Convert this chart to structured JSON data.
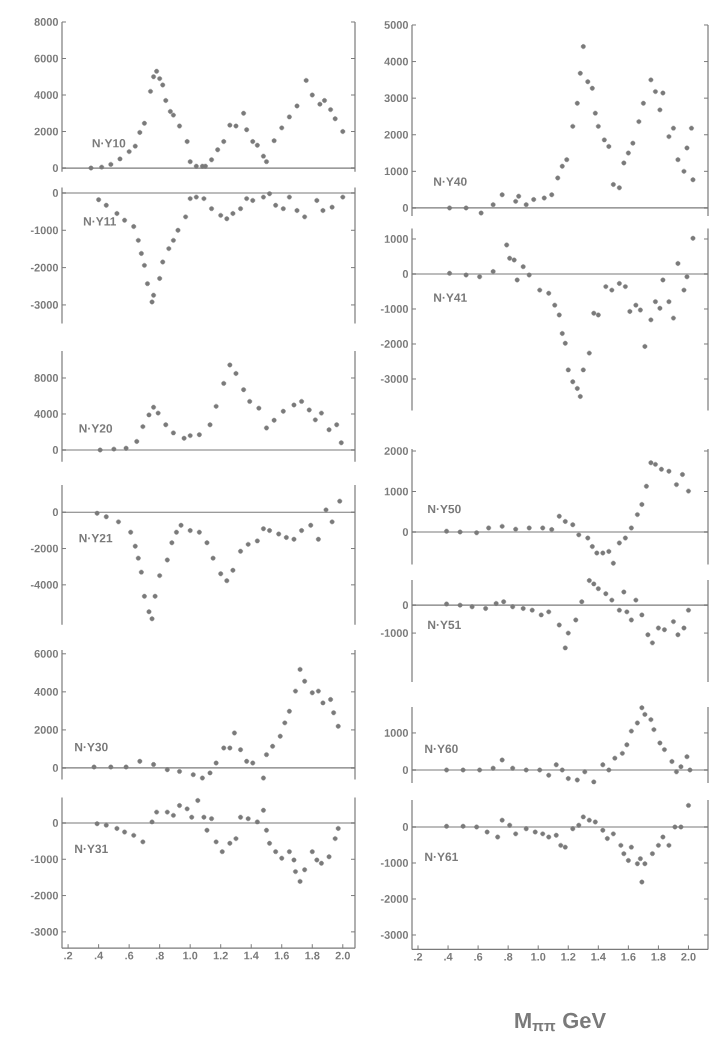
{
  "chart_data": [
    {
      "type": "scatter",
      "annotations": [
        "N·Y10"
      ],
      "color": "#7a7a7a",
      "marker": "circle",
      "xlim": [
        0.16,
        2.08
      ],
      "ylim": [
        -200,
        8000
      ],
      "yticks": [
        0,
        2000,
        4000,
        6000,
        8000
      ],
      "tick_labels": "y",
      "ref_lines": [
        {
          "axis": "y",
          "value": 0
        }
      ],
      "x": [
        0.35,
        0.42,
        0.48,
        0.54,
        0.6,
        0.64,
        0.67,
        0.7,
        0.74,
        0.76,
        0.78,
        0.8,
        0.82,
        0.84,
        0.87,
        0.89,
        0.93,
        0.98,
        1.0,
        1.04,
        1.08,
        1.1,
        1.14,
        1.18,
        1.22,
        1.26,
        1.3,
        1.35,
        1.37,
        1.41,
        1.44,
        1.48,
        1.5,
        1.55,
        1.6,
        1.65,
        1.7,
        1.76,
        1.8,
        1.85,
        1.88,
        1.92,
        1.95,
        2.0
      ],
      "values": [
        0,
        50,
        200,
        500,
        900,
        1200,
        1950,
        2450,
        4200,
        5000,
        5300,
        4900,
        4550,
        3700,
        3100,
        2900,
        2300,
        1450,
        350,
        100,
        100,
        100,
        450,
        1000,
        1450,
        2350,
        2300,
        3000,
        2100,
        1450,
        1250,
        650,
        350,
        1500,
        2200,
        2800,
        3400,
        4800,
        4000,
        3500,
        3700,
        3200,
        2700,
        2000
      ]
    },
    {
      "type": "scatter",
      "annotations": [
        "N·Y11"
      ],
      "color": "#7a7a7a",
      "marker": "circle",
      "xlim": [
        0.16,
        2.08
      ],
      "ylim": [
        -3500,
        150
      ],
      "yticks": [
        -3000,
        -2000,
        -1000,
        0
      ],
      "tick_labels": "y",
      "ref_lines": [
        {
          "axis": "y",
          "value": 0
        }
      ],
      "x": [
        0.4,
        0.45,
        0.52,
        0.57,
        0.63,
        0.66,
        0.68,
        0.7,
        0.72,
        0.75,
        0.76,
        0.8,
        0.82,
        0.86,
        0.89,
        0.92,
        0.97,
        1.0,
        1.04,
        1.09,
        1.14,
        1.2,
        1.24,
        1.28,
        1.33,
        1.37,
        1.41,
        1.48,
        1.52,
        1.56,
        1.61,
        1.65,
        1.7,
        1.75,
        1.83,
        1.87,
        1.93,
        2.0
      ],
      "values": [
        -180,
        -330,
        -550,
        -730,
        -900,
        -1270,
        -1620,
        -1940,
        -2430,
        -2920,
        -2740,
        -2290,
        -1850,
        -1490,
        -1270,
        -1000,
        -640,
        -150,
        -110,
        -150,
        -420,
        -600,
        -690,
        -550,
        -420,
        -150,
        -200,
        -110,
        -20,
        -330,
        -420,
        -110,
        -470,
        -640,
        -200,
        -470,
        -380,
        -110
      ]
    },
    {
      "type": "scatter",
      "annotations": [
        "N·Y20"
      ],
      "color": "#7a7a7a",
      "marker": "circle",
      "xlim": [
        0.16,
        2.08
      ],
      "ylim": [
        -1300,
        11000
      ],
      "yticks": [
        0,
        4000,
        8000
      ],
      "tick_labels": "y",
      "ref_lines": [
        {
          "axis": "y",
          "value": 0
        }
      ],
      "x": [
        0.41,
        0.5,
        0.58,
        0.65,
        0.69,
        0.73,
        0.76,
        0.79,
        0.84,
        0.89,
        0.96,
        1.0,
        1.06,
        1.13,
        1.17,
        1.22,
        1.26,
        1.3,
        1.35,
        1.39,
        1.45,
        1.5,
        1.55,
        1.61,
        1.68,
        1.73,
        1.78,
        1.82,
        1.86,
        1.91,
        1.96,
        1.99
      ],
      "values": [
        0,
        100,
        200,
        950,
        2600,
        3900,
        4750,
        4100,
        2800,
        1900,
        1300,
        1600,
        1700,
        2800,
        4850,
        7400,
        9450,
        8500,
        6700,
        5400,
        4650,
        2450,
        3300,
        4300,
        5000,
        5400,
        4450,
        3350,
        4100,
        2250,
        2800,
        800
      ]
    },
    {
      "type": "scatter",
      "annotations": [
        "N·Y21"
      ],
      "color": "#7a7a7a",
      "marker": "circle",
      "xlim": [
        0.16,
        2.08
      ],
      "ylim": [
        -6200,
        1500
      ],
      "yticks": [
        -4000,
        -2000,
        0
      ],
      "tick_labels": "y",
      "ref_lines": [
        {
          "axis": "y",
          "value": 0
        }
      ],
      "x": [
        0.39,
        0.45,
        0.53,
        0.61,
        0.64,
        0.66,
        0.68,
        0.7,
        0.73,
        0.75,
        0.77,
        0.8,
        0.85,
        0.88,
        0.91,
        0.94,
        1.0,
        1.06,
        1.11,
        1.15,
        1.2,
        1.24,
        1.28,
        1.33,
        1.38,
        1.44,
        1.48,
        1.52,
        1.58,
        1.63,
        1.68,
        1.73,
        1.79,
        1.84,
        1.89,
        1.93,
        1.98
      ],
      "values": [
        -60,
        -250,
        -530,
        -1100,
        -1870,
        -2530,
        -3300,
        -4630,
        -5480,
        -5870,
        -4630,
        -3490,
        -2630,
        -1680,
        -1100,
        -720,
        -1010,
        -1100,
        -1680,
        -2530,
        -3390,
        -3770,
        -3200,
        -2150,
        -1770,
        -1580,
        -910,
        -1010,
        -1200,
        -1390,
        -1490,
        -1010,
        -720,
        -1490,
        130,
        -530,
        610
      ]
    },
    {
      "type": "scatter",
      "annotations": [
        "N·Y30"
      ],
      "color": "#7a7a7a",
      "marker": "circle",
      "xlim": [
        0.16,
        2.08
      ],
      "ylim": [
        -600,
        6200
      ],
      "yticks": [
        0,
        2000,
        4000,
        6000
      ],
      "tick_labels": "y",
      "ref_lines": [
        {
          "axis": "y",
          "value": 0
        }
      ],
      "x": [
        0.37,
        0.48,
        0.58,
        0.67,
        0.76,
        0.85,
        0.93,
        1.02,
        1.08,
        1.13,
        1.17,
        1.22,
        1.26,
        1.29,
        1.33,
        1.37,
        1.41,
        1.48,
        1.5,
        1.54,
        1.59,
        1.62,
        1.65,
        1.69,
        1.72,
        1.75,
        1.8,
        1.84,
        1.87,
        1.92,
        1.94,
        1.97
      ],
      "values": [
        50,
        50,
        50,
        350,
        180,
        -90,
        -180,
        -350,
        -530,
        -260,
        260,
        1050,
        1050,
        1840,
        960,
        350,
        260,
        -530,
        700,
        1140,
        1670,
        2370,
        2980,
        4040,
        5180,
        4560,
        3950,
        4040,
        3420,
        3600,
        2900,
        2190
      ]
    },
    {
      "type": "scatter",
      "annotations": [
        "N·Y31"
      ],
      "color": "#7a7a7a",
      "marker": "circle",
      "xlim": [
        0.16,
        2.08
      ],
      "ylim": [
        -3450,
        700
      ],
      "yticks": [
        -3000,
        -2000,
        -1000,
        0
      ],
      "ref_lines": [
        {
          "axis": "y",
          "value": 0
        }
      ],
      "xticks": [
        {
          "value": 0.2,
          "label": ".2"
        },
        {
          "value": 0.4,
          "label": ".4"
        },
        {
          "value": 0.6,
          "label": ".6"
        },
        {
          "value": 0.8,
          "label": ".8"
        },
        {
          "value": 1.0,
          "label": "1.0"
        },
        {
          "value": 1.2,
          "label": "1.2"
        },
        {
          "value": 1.4,
          "label": "1.4"
        },
        {
          "value": 1.6,
          "label": "1.6"
        },
        {
          "value": 1.8,
          "label": "1.8"
        },
        {
          "value": 2.0,
          "label": "2.0"
        }
      ],
      "x": [
        0.39,
        0.45,
        0.52,
        0.57,
        0.63,
        0.69,
        0.75,
        0.78,
        0.85,
        0.89,
        0.93,
        0.98,
        1.01,
        1.05,
        1.09,
        1.11,
        1.14,
        1.17,
        1.21,
        1.26,
        1.3,
        1.33,
        1.38,
        1.44,
        1.48,
        1.5,
        1.52,
        1.56,
        1.6,
        1.65,
        1.68,
        1.69,
        1.72,
        1.75,
        1.8,
        1.83,
        1.86,
        1.91,
        1.95,
        1.97
      ],
      "values": [
        -20,
        -60,
        -150,
        -250,
        -340,
        -520,
        30,
        300,
        300,
        210,
        480,
        390,
        160,
        620,
        160,
        -200,
        120,
        -520,
        -790,
        -560,
        -430,
        160,
        120,
        30,
        350,
        -200,
        -560,
        -790,
        -970,
        -790,
        -1020,
        -1340,
        -1610,
        -1290,
        -790,
        -1020,
        -1110,
        -930,
        -430,
        -150
      ]
    },
    {
      "type": "scatter",
      "annotations": [
        "N·Y40"
      ],
      "color": "#7a7a7a",
      "marker": "circle",
      "xlim": [
        0.16,
        2.13
      ],
      "ylim": [
        -220,
        5000
      ],
      "yticks": [
        0,
        1000,
        2000,
        3000,
        4000,
        5000
      ],
      "tick_labels": "y",
      "ref_lines": [
        {
          "axis": "y",
          "value": 0
        }
      ],
      "x": [
        0.41,
        0.52,
        0.62,
        0.7,
        0.76,
        0.85,
        0.87,
        0.92,
        0.97,
        1.04,
        1.09,
        1.13,
        1.16,
        1.19,
        1.23,
        1.26,
        1.28,
        1.3,
        1.33,
        1.36,
        1.38,
        1.4,
        1.44,
        1.47,
        1.5,
        1.54,
        1.57,
        1.6,
        1.63,
        1.67,
        1.7,
        1.75,
        1.78,
        1.81,
        1.83,
        1.87,
        1.9,
        1.93,
        1.97,
        1.99,
        2.02,
        2.03
      ],
      "values": [
        0,
        0,
        -140,
        90,
        360,
        180,
        320,
        90,
        230,
        270,
        360,
        820,
        1140,
        1320,
        2230,
        2860,
        3680,
        4410,
        3450,
        3270,
        2590,
        2230,
        1860,
        1680,
        640,
        550,
        1230,
        1500,
        1770,
        2360,
        2860,
        3500,
        3180,
        2680,
        3140,
        1950,
        2180,
        1320,
        1000,
        1640,
        2180,
        770
      ]
    },
    {
      "type": "scatter",
      "annotations": [
        "N·Y41"
      ],
      "color": "#7a7a7a",
      "marker": "circle",
      "xlim": [
        0.16,
        2.13
      ],
      "ylim": [
        -3900,
        1300
      ],
      "yticks": [
        -3000,
        -2000,
        -1000,
        0,
        1000
      ],
      "tick_labels": "y",
      "ref_lines": [
        {
          "axis": "y",
          "value": 0
        }
      ],
      "x": [
        0.41,
        0.52,
        0.61,
        0.7,
        0.79,
        0.81,
        0.84,
        0.86,
        0.9,
        0.94,
        1.01,
        1.07,
        1.11,
        1.14,
        1.16,
        1.18,
        1.2,
        1.23,
        1.26,
        1.28,
        1.3,
        1.34,
        1.37,
        1.4,
        1.45,
        1.49,
        1.54,
        1.58,
        1.61,
        1.65,
        1.68,
        1.71,
        1.75,
        1.78,
        1.81,
        1.83,
        1.87,
        1.9,
        1.93,
        1.97,
        1.99,
        2.03
      ],
      "values": [
        20,
        -30,
        -80,
        70,
        830,
        450,
        400,
        -170,
        210,
        -30,
        -460,
        -550,
        -890,
        -1170,
        -1700,
        -1980,
        -2740,
        -3080,
        -3270,
        -3500,
        -2740,
        -2260,
        -1120,
        -1170,
        -360,
        -460,
        -270,
        -360,
        -1070,
        -890,
        -1030,
        -2070,
        -1310,
        -790,
        -980,
        -170,
        -790,
        -1260,
        300,
        -460,
        -80,
        1020
      ]
    },
    {
      "type": "scatter",
      "annotations": [
        "N·Y50"
      ],
      "color": "#7a7a7a",
      "marker": "circle",
      "xlim": [
        0.16,
        2.13
      ],
      "ylim": [
        -800,
        2050
      ],
      "yticks": [
        0,
        1000,
        2000
      ],
      "tick_labels": "y",
      "ref_lines": [
        {
          "axis": "y",
          "value": 0
        }
      ],
      "x": [
        0.39,
        0.48,
        0.59,
        0.67,
        0.76,
        0.85,
        0.94,
        1.03,
        1.09,
        1.14,
        1.18,
        1.23,
        1.27,
        1.33,
        1.36,
        1.39,
        1.43,
        1.47,
        1.5,
        1.54,
        1.58,
        1.62,
        1.66,
        1.69,
        1.72,
        1.75,
        1.78,
        1.82,
        1.87,
        1.92,
        1.96,
        2.0
      ],
      "values": [
        20,
        0,
        -20,
        100,
        140,
        70,
        100,
        100,
        60,
        390,
        260,
        180,
        -70,
        -150,
        -360,
        -520,
        -520,
        -480,
        -770,
        -270,
        -150,
        100,
        430,
        680,
        1130,
        1710,
        1670,
        1550,
        1500,
        1170,
        1420,
        1010
      ]
    },
    {
      "type": "scatter",
      "annotations": [
        "N·Y51"
      ],
      "color": "#7a7a7a",
      "marker": "circle",
      "xlim": [
        0.16,
        2.13
      ],
      "ylim": [
        -2750,
        900
      ],
      "yticks": [
        -1000,
        0
      ],
      "tick_labels": "y",
      "ref_lines": [
        {
          "axis": "y",
          "value": 0
        }
      ],
      "x": [
        0.39,
        0.48,
        0.56,
        0.65,
        0.72,
        0.77,
        0.83,
        0.9,
        0.96,
        1.02,
        1.07,
        1.14,
        1.18,
        1.2,
        1.25,
        1.29,
        1.34,
        1.37,
        1.4,
        1.45,
        1.49,
        1.54,
        1.57,
        1.59,
        1.62,
        1.65,
        1.69,
        1.73,
        1.76,
        1.8,
        1.84,
        1.9,
        1.93,
        1.97,
        2.0
      ],
      "values": [
        40,
        0,
        -60,
        -120,
        60,
        120,
        -60,
        -120,
        -180,
        -350,
        -240,
        -710,
        -1530,
        -1000,
        -530,
        120,
        880,
        760,
        590,
        410,
        180,
        -180,
        470,
        -240,
        -530,
        180,
        -350,
        -1060,
        -1350,
        -820,
        -880,
        -590,
        -1060,
        -820,
        -180
      ]
    },
    {
      "type": "scatter",
      "annotations": [
        "N·Y60"
      ],
      "color": "#7a7a7a",
      "marker": "circle",
      "xlim": [
        0.16,
        2.13
      ],
      "ylim": [
        -350,
        1700
      ],
      "yticks": [
        0,
        1000
      ],
      "tick_labels": "y",
      "ref_lines": [
        {
          "axis": "y",
          "value": 0
        }
      ],
      "x": [
        0.39,
        0.5,
        0.61,
        0.7,
        0.76,
        0.83,
        0.92,
        1.01,
        1.07,
        1.12,
        1.16,
        1.2,
        1.26,
        1.31,
        1.37,
        1.43,
        1.47,
        1.51,
        1.56,
        1.59,
        1.62,
        1.66,
        1.69,
        1.71,
        1.75,
        1.77,
        1.81,
        1.84,
        1.89,
        1.92,
        1.95,
        1.99,
        2.01
      ],
      "values": [
        0,
        0,
        0,
        50,
        270,
        50,
        0,
        0,
        -140,
        140,
        0,
        -230,
        -270,
        -50,
        -320,
        140,
        0,
        320,
        450,
        680,
        1050,
        1270,
        1680,
        1500,
        1360,
        1090,
        730,
        550,
        230,
        -50,
        90,
        360,
        0
      ]
    },
    {
      "type": "scatter",
      "annotations": [
        "N·Y61"
      ],
      "xlabel": "M$_{ππ}$ GeV",
      "color": "#7a7a7a",
      "marker": "circle",
      "xlim": [
        0.16,
        2.13
      ],
      "ylim": [
        -3400,
        750
      ],
      "yticks": [
        -3000,
        -2000,
        -1000,
        0
      ],
      "ref_lines": [
        {
          "axis": "y",
          "value": 0
        }
      ],
      "xticks": [
        {
          "value": 0.2,
          "label": ".2"
        },
        {
          "value": 0.4,
          "label": ".4"
        },
        {
          "value": 0.6,
          "label": ".6"
        },
        {
          "value": 0.8,
          "label": ".8"
        },
        {
          "value": 1.0,
          "label": "1.0"
        },
        {
          "value": 1.2,
          "label": "1.2"
        },
        {
          "value": 1.4,
          "label": "1.4"
        },
        {
          "value": 1.6,
          "label": "1.6"
        },
        {
          "value": 1.8,
          "label": "1.8"
        },
        {
          "value": 2.0,
          "label": "2.0"
        }
      ],
      "x": [
        0.39,
        0.5,
        0.59,
        0.66,
        0.73,
        0.76,
        0.81,
        0.85,
        0.92,
        0.98,
        1.03,
        1.07,
        1.12,
        1.15,
        1.18,
        1.23,
        1.27,
        1.3,
        1.34,
        1.38,
        1.43,
        1.46,
        1.5,
        1.55,
        1.57,
        1.6,
        1.62,
        1.66,
        1.68,
        1.69,
        1.71,
        1.76,
        1.8,
        1.83,
        1.87,
        1.91,
        1.95,
        2.0
      ],
      "values": [
        20,
        20,
        0,
        -140,
        -280,
        190,
        50,
        -190,
        -50,
        -140,
        -190,
        -280,
        -230,
        -510,
        -560,
        -50,
        50,
        280,
        190,
        140,
        -90,
        -320,
        -190,
        -510,
        -740,
        -930,
        -560,
        -1020,
        -880,
        -1530,
        -1020,
        -740,
        -510,
        -280,
        -510,
        0,
        0,
        600
      ]
    }
  ]
}
